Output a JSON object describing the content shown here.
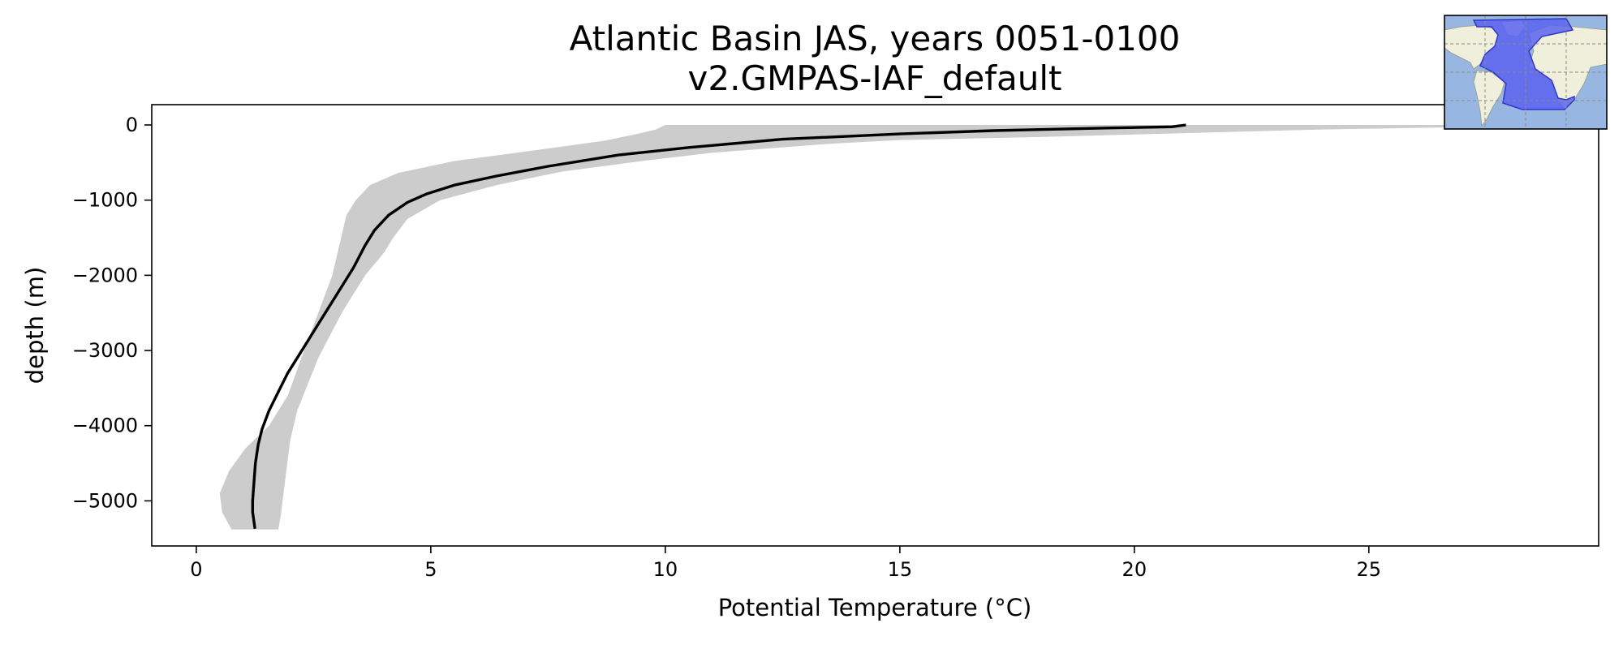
{
  "chart_data": {
    "type": "line",
    "title": "Atlantic Basin JAS, years 0051-0100",
    "subtitle": "v2.GMPAS-IAF_default",
    "xlabel": "Potential Temperature (°C)",
    "ylabel": "depth (m)",
    "xlim": [
      -0.95,
      29.9
    ],
    "ylim": [
      -5600,
      270
    ],
    "xticks": [
      0,
      5,
      10,
      15,
      20,
      25
    ],
    "yticks": [
      0,
      -1000,
      -2000,
      -3000,
      -4000,
      -5000
    ],
    "grid": false,
    "legend": "none",
    "series": [
      {
        "kind": "mean-line",
        "color": "#000000",
        "points": [
          [
            21.1,
            0
          ],
          [
            20.8,
            -25
          ],
          [
            19.5,
            -40
          ],
          [
            17.0,
            -75
          ],
          [
            15.0,
            -120
          ],
          [
            12.5,
            -190
          ],
          [
            10.5,
            -300
          ],
          [
            9.0,
            -400
          ],
          [
            7.5,
            -550
          ],
          [
            6.4,
            -680
          ],
          [
            5.5,
            -800
          ],
          [
            4.9,
            -920
          ],
          [
            4.5,
            -1030
          ],
          [
            4.1,
            -1200
          ],
          [
            3.8,
            -1400
          ],
          [
            3.6,
            -1600
          ],
          [
            3.35,
            -1900
          ],
          [
            3.05,
            -2200
          ],
          [
            2.75,
            -2500
          ],
          [
            2.45,
            -2800
          ],
          [
            2.2,
            -3050
          ],
          [
            1.95,
            -3300
          ],
          [
            1.75,
            -3550
          ],
          [
            1.55,
            -3800
          ],
          [
            1.4,
            -4050
          ],
          [
            1.32,
            -4250
          ],
          [
            1.26,
            -4500
          ],
          [
            1.23,
            -4750
          ],
          [
            1.2,
            -5000
          ],
          [
            1.2,
            -5150
          ],
          [
            1.25,
            -5370
          ]
        ]
      },
      {
        "kind": "spread-band",
        "color": "#cccccc",
        "upper": [
          [
            29.9,
            0
          ],
          [
            27.0,
            -30
          ],
          [
            24.0,
            -60
          ],
          [
            21.0,
            -110
          ],
          [
            18.0,
            -160
          ],
          [
            15.0,
            -200
          ],
          [
            13.5,
            -250
          ],
          [
            11.0,
            -370
          ],
          [
            9.5,
            -480
          ],
          [
            7.8,
            -620
          ],
          [
            6.4,
            -800
          ],
          [
            5.2,
            -1000
          ],
          [
            4.5,
            -1250
          ],
          [
            4.2,
            -1500
          ],
          [
            4.0,
            -1700
          ],
          [
            3.6,
            -2000
          ],
          [
            3.1,
            -2500
          ],
          [
            2.6,
            -3100
          ],
          [
            2.15,
            -3800
          ],
          [
            2.0,
            -4200
          ],
          [
            1.9,
            -4700
          ],
          [
            1.8,
            -5200
          ],
          [
            1.75,
            -5380
          ]
        ],
        "lower": [
          [
            10.0,
            0
          ],
          [
            9.8,
            -60
          ],
          [
            9.4,
            -120
          ],
          [
            8.7,
            -210
          ],
          [
            7.3,
            -330
          ],
          [
            5.5,
            -480
          ],
          [
            4.3,
            -640
          ],
          [
            3.7,
            -800
          ],
          [
            3.4,
            -1000
          ],
          [
            3.2,
            -1200
          ],
          [
            3.05,
            -1600
          ],
          [
            2.9,
            -2000
          ],
          [
            2.3,
            -3000
          ],
          [
            1.95,
            -3600
          ],
          [
            1.55,
            -4000
          ],
          [
            1.05,
            -4300
          ],
          [
            0.7,
            -4600
          ],
          [
            0.5,
            -4900
          ],
          [
            0.55,
            -5150
          ],
          [
            0.75,
            -5380
          ]
        ]
      }
    ]
  },
  "inset_map": {
    "ocean_color": "#97b6e1",
    "land_color": "#efefdb",
    "region_color": "#5a63f0"
  }
}
